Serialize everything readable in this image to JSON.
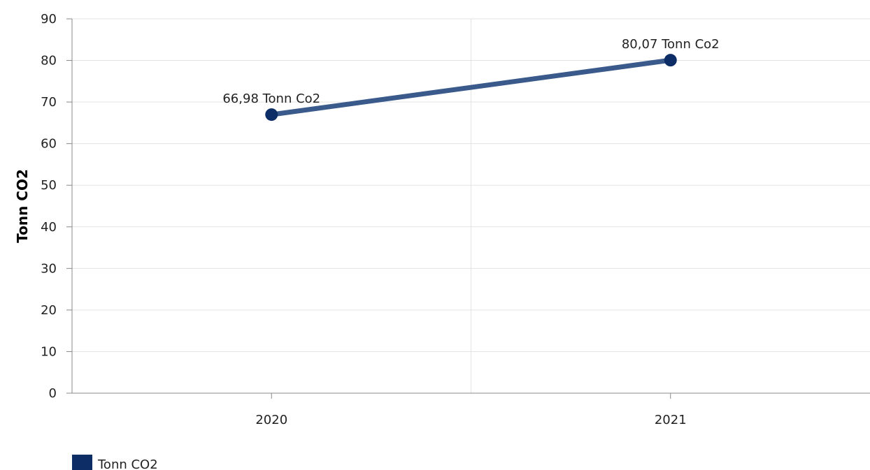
{
  "chart_data": {
    "type": "line",
    "title": "",
    "xlabel": "",
    "ylabel": "Tonn CO2",
    "categories": [
      "2020",
      "2021"
    ],
    "series": [
      {
        "name": "Tonn CO2",
        "values": [
          66.98,
          80.07
        ],
        "data_labels": [
          "66,98 Tonn Co2",
          "80,07 Tonn Co2"
        ]
      }
    ],
    "ylim": [
      0,
      90
    ],
    "yticks": [
      "0",
      "10",
      "20",
      "30",
      "40",
      "50",
      "60",
      "70",
      "80",
      "90"
    ],
    "grid": true,
    "legend": "bottom-left",
    "colors": {
      "series": "#3a5a8c",
      "marker": "#0d2d66",
      "legend_swatch": "#0d2d66",
      "grid": "#e3e3e3",
      "axis": "#888888"
    }
  }
}
